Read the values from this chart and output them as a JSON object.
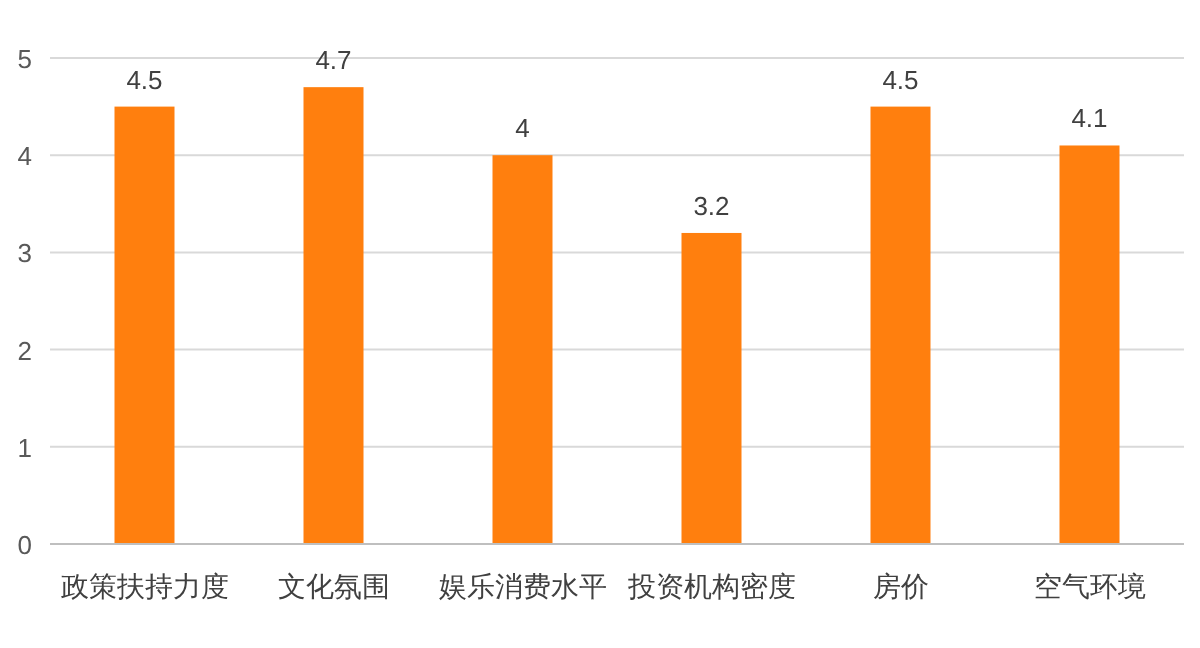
{
  "chart_data": {
    "type": "bar",
    "categories": [
      "政策扶持力度",
      "文化氛围",
      "娱乐消费水平",
      "投资机构密度",
      "房价",
      "空气环境"
    ],
    "values": [
      4.5,
      4.7,
      4,
      3.2,
      4.5,
      4.1
    ],
    "color": "#ff7f0e",
    "ylim": [
      0,
      5
    ],
    "yticks": [
      0,
      1,
      2,
      3,
      4,
      5
    ],
    "grid": "y",
    "data_labels": true
  }
}
